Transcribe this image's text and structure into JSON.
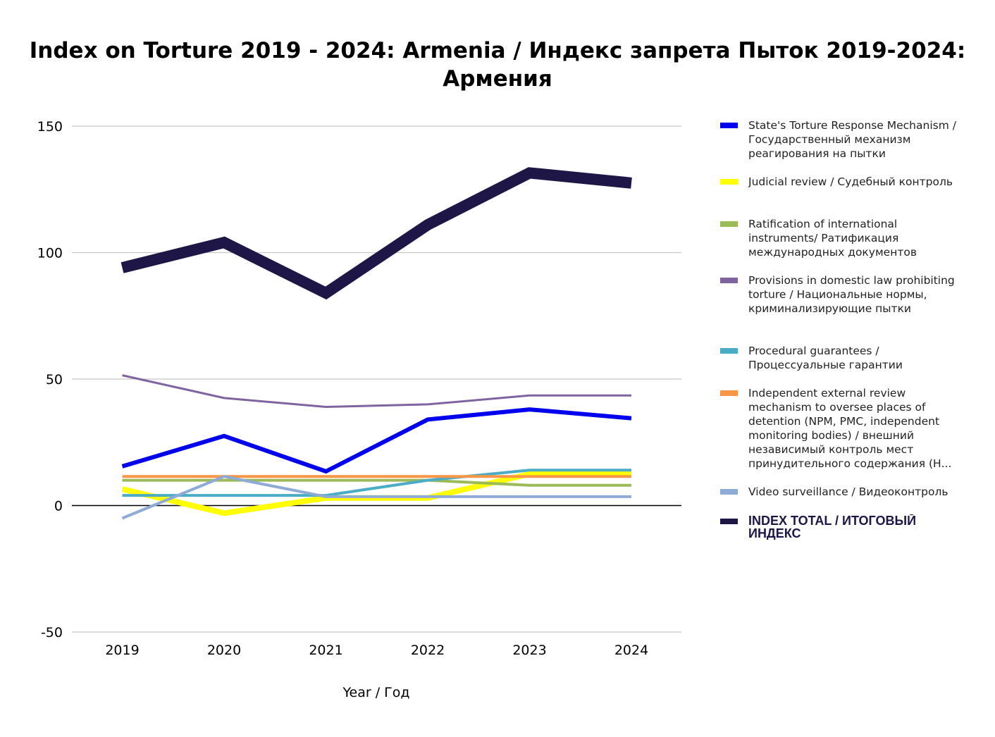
{
  "chart_data": {
    "type": "line",
    "title": "Index on Torture 2019 - 2024: Armenia / Индекс запрета Пыток 2019-2024: Армения",
    "xlabel": "Year / Год",
    "ylabel": "",
    "x": [
      "2019",
      "2020",
      "2021",
      "2022",
      "2023",
      "2024"
    ],
    "ylim": [
      -50,
      150
    ],
    "yticks": [
      "150",
      "100",
      "50",
      "0",
      "-50"
    ],
    "grid": true,
    "legend_position": "right",
    "series": [
      {
        "name": "State's Torture Response Mechanism / Государственный механизм реагирования на пытки",
        "color": "#0000ee",
        "values": [
          15.5,
          27.5,
          13.5,
          34,
          38,
          34.5
        ],
        "width": 6
      },
      {
        "name": "Judicial review / Судебный контроль",
        "color": "#ffff00",
        "values": [
          6.5,
          -3,
          3,
          3,
          12.5,
          12.5
        ],
        "width": 8
      },
      {
        "name": "Ratification of international instruments/ Ратификация международных документов",
        "color": "#9bbb59",
        "values": [
          10,
          10,
          10,
          10,
          8,
          8
        ],
        "width": 4
      },
      {
        "name": "Provisions in domestic law prohibiting torture / Национальные нормы, криминализирующие пытки",
        "color": "#8064a2",
        "values": [
          51.5,
          42.5,
          39,
          40,
          43.5,
          43.5
        ],
        "width": 3
      },
      {
        "name": "Procedural guarantees / Процессуальные гарантии",
        "color": "#4bacc6",
        "values": [
          4,
          4,
          4,
          10,
          14,
          14
        ],
        "width": 4
      },
      {
        "name": "Independent external review mechanism to oversee places of detention (NPM, PMC, independent monitoring bodies) / внешний независимый контроль мест принудительного содержания (Н...",
        "color": "#f79646",
        "values": [
          11.5,
          11.5,
          11.5,
          11.5,
          11.5,
          11.5
        ],
        "width": 4
      },
      {
        "name": "Video surveillance / Видеоконтроль",
        "color": "#8eaad6",
        "values": [
          -5,
          11.5,
          3.5,
          3.5,
          3.5,
          3.5
        ],
        "width": 4
      },
      {
        "name": "INDEX TOTAL /  ИТОГОВЫЙ ИНДЕКС",
        "color": "#1d1646",
        "values": [
          94,
          104,
          84,
          111,
          131.5,
          127.5
        ],
        "width": 16,
        "bold": true
      }
    ]
  }
}
